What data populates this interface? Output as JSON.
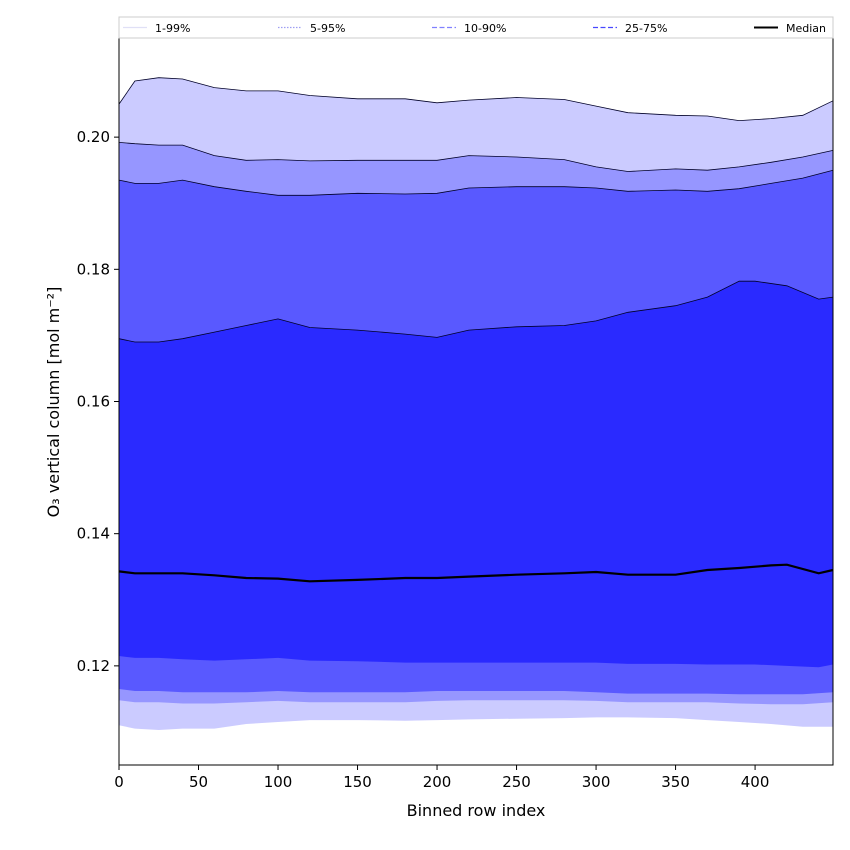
{
  "chart_data": {
    "type": "area",
    "title": "",
    "xlabel": "Binned row index",
    "ylabel": "O₃ vertical column [mol m⁻²]",
    "xlim": [
      0,
      449
    ],
    "ylim": [
      0.105,
      0.215
    ],
    "xticks": [
      "0",
      "50",
      "100",
      "150",
      "200",
      "250",
      "300",
      "350",
      "400"
    ],
    "yticks": [
      "0.12",
      "0.14",
      "0.16",
      "0.18",
      "0.20"
    ],
    "grid": false,
    "legend_position": "top",
    "legend": [
      {
        "label": "1-99%",
        "style": "solid",
        "color": "#e0e0f6"
      },
      {
        "label": "5-95%",
        "style": "dotted",
        "color": "#9e9ef2"
      },
      {
        "label": "10-90%",
        "style": "dashed",
        "color": "#8080ff"
      },
      {
        "label": "25-75%",
        "style": "dashed",
        "color": "#4848ff"
      },
      {
        "label": "Median",
        "style": "solid",
        "color": "#000000"
      }
    ],
    "bands": [
      {
        "name": "1-99%",
        "color": "#cbcbff",
        "x": [
          0,
          10,
          25,
          40,
          60,
          80,
          100,
          120,
          150,
          180,
          200,
          220,
          250,
          280,
          300,
          320,
          350,
          370,
          390,
          410,
          430,
          449
        ],
        "upper": [
          0.205,
          0.2085,
          0.209,
          0.2088,
          0.2075,
          0.207,
          0.207,
          0.2063,
          0.2058,
          0.2058,
          0.2052,
          0.2056,
          0.206,
          0.2057,
          0.2047,
          0.2037,
          0.2033,
          0.2032,
          0.2025,
          0.2028,
          0.2033,
          0.2055
        ],
        "lower": [
          0.111,
          0.1105,
          0.1103,
          0.1105,
          0.1105,
          0.1112,
          0.1115,
          0.1118,
          0.1118,
          0.1117,
          0.1118,
          0.1119,
          0.112,
          0.1121,
          0.1122,
          0.1122,
          0.1121,
          0.1118,
          0.1115,
          0.1112,
          0.1108,
          0.1108
        ]
      },
      {
        "name": "5-95%",
        "color": "#9696ff",
        "x": [
          0,
          10,
          25,
          40,
          60,
          80,
          100,
          120,
          150,
          180,
          200,
          220,
          250,
          280,
          300,
          320,
          350,
          370,
          390,
          410,
          430,
          449
        ],
        "upper": [
          0.1992,
          0.199,
          0.1988,
          0.1988,
          0.1972,
          0.1965,
          0.1966,
          0.1964,
          0.1965,
          0.1965,
          0.1965,
          0.1972,
          0.197,
          0.1966,
          0.1955,
          0.1948,
          0.1952,
          0.195,
          0.1955,
          0.1962,
          0.197,
          0.198
        ],
        "lower": [
          0.1148,
          0.1145,
          0.1145,
          0.1143,
          0.1143,
          0.1145,
          0.1147,
          0.1145,
          0.1145,
          0.1145,
          0.1147,
          0.1148,
          0.1148,
          0.1148,
          0.1147,
          0.1145,
          0.1145,
          0.1145,
          0.1143,
          0.1142,
          0.1142,
          0.1145
        ]
      },
      {
        "name": "10-90%",
        "color": "#5959ff",
        "x": [
          0,
          10,
          25,
          40,
          60,
          80,
          100,
          120,
          150,
          180,
          200,
          220,
          250,
          280,
          300,
          320,
          350,
          370,
          390,
          410,
          430,
          449
        ],
        "upper": [
          0.1935,
          0.193,
          0.193,
          0.1935,
          0.1925,
          0.1918,
          0.1912,
          0.1912,
          0.1915,
          0.1914,
          0.1915,
          0.1923,
          0.1925,
          0.1925,
          0.1923,
          0.1918,
          0.192,
          0.1918,
          0.1922,
          0.193,
          0.1938,
          0.195
        ],
        "lower": [
          0.1165,
          0.1162,
          0.1162,
          0.116,
          0.116,
          0.116,
          0.1162,
          0.116,
          0.116,
          0.116,
          0.1162,
          0.1162,
          0.1162,
          0.1162,
          0.116,
          0.1158,
          0.1158,
          0.1158,
          0.1157,
          0.1157,
          0.1157,
          0.116
        ]
      },
      {
        "name": "25-75%",
        "color": "#2a2aff",
        "x": [
          0,
          10,
          25,
          40,
          60,
          80,
          100,
          120,
          150,
          180,
          200,
          220,
          250,
          280,
          300,
          320,
          350,
          370,
          390,
          400,
          420,
          440,
          449
        ],
        "upper": [
          0.1695,
          0.169,
          0.169,
          0.1695,
          0.1705,
          0.1715,
          0.1725,
          0.1712,
          0.1708,
          0.1702,
          0.1697,
          0.1708,
          0.1713,
          0.1715,
          0.1722,
          0.1735,
          0.1745,
          0.1758,
          0.1782,
          0.1782,
          0.1775,
          0.1755,
          0.1758
        ],
        "lower": [
          0.1215,
          0.1212,
          0.1212,
          0.121,
          0.1208,
          0.121,
          0.1212,
          0.1208,
          0.1207,
          0.1205,
          0.1205,
          0.1205,
          0.1205,
          0.1205,
          0.1205,
          0.1203,
          0.1203,
          0.1202,
          0.1202,
          0.1202,
          0.12,
          0.1198,
          0.1202
        ]
      }
    ],
    "series": [
      {
        "name": "Median",
        "color": "#000000",
        "x": [
          0,
          10,
          25,
          40,
          60,
          80,
          100,
          120,
          150,
          180,
          200,
          220,
          250,
          280,
          300,
          320,
          350,
          370,
          390,
          410,
          420,
          440,
          449
        ],
        "values": [
          0.1343,
          0.134,
          0.134,
          0.134,
          0.1337,
          0.1333,
          0.1332,
          0.1328,
          0.133,
          0.1333,
          0.1333,
          0.1335,
          0.1338,
          0.134,
          0.1342,
          0.1338,
          0.1338,
          0.1345,
          0.1348,
          0.1352,
          0.1353,
          0.134,
          0.1345
        ]
      }
    ]
  }
}
